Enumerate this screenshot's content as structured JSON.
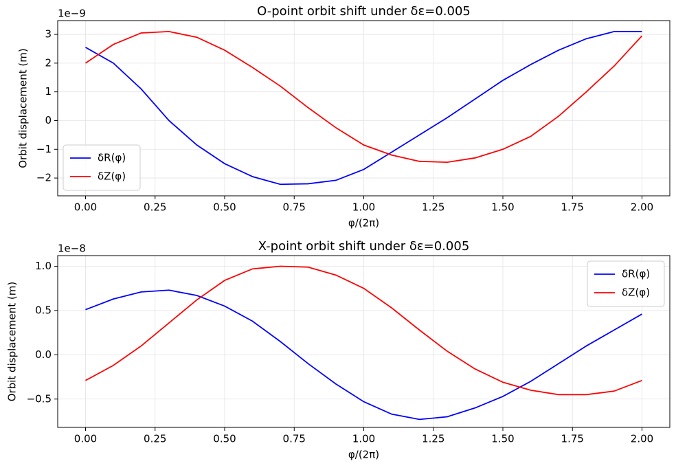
{
  "chart_data": [
    {
      "type": "line",
      "title": "O-point orbit shift under δε=0.005",
      "x_label": "φ/(2π)",
      "y_label": "Orbit displacement (m)",
      "offset_text": "1e−9",
      "x": [
        0,
        0.1,
        0.2,
        0.3,
        0.4,
        0.5,
        0.6,
        0.7,
        0.8,
        0.9,
        1.0,
        1.1,
        1.2,
        1.3,
        1.4,
        1.5,
        1.6,
        1.7,
        1.8,
        1.9,
        2.0
      ],
      "series": [
        {
          "name": "δR(φ)",
          "color": "#0000ff",
          "values": [
            2.55,
            2.0,
            1.1,
            0.0,
            -0.85,
            -1.5,
            -1.95,
            -2.22,
            -2.2,
            -2.08,
            -1.7,
            -1.1,
            -0.5,
            0.1,
            0.75,
            1.4,
            1.95,
            2.45,
            2.85,
            3.1,
            3.1
          ]
        },
        {
          "name": "δZ(φ)",
          "color": "#ff0000",
          "values": [
            2.0,
            2.65,
            3.05,
            3.1,
            2.9,
            2.45,
            1.85,
            1.2,
            0.45,
            -0.25,
            -0.85,
            -1.2,
            -1.42,
            -1.45,
            -1.3,
            -1.0,
            -0.55,
            0.15,
            1.0,
            1.9,
            2.95
          ]
        }
      ],
      "xlim": [
        -0.1,
        2.1
      ],
      "ylim": [
        -2.62,
        3.48
      ],
      "xticks": [
        {
          "value": 0,
          "label": "0.00"
        },
        {
          "value": 0.25,
          "label": "0.25"
        },
        {
          "value": 0.5,
          "label": "0.50"
        },
        {
          "value": 0.75,
          "label": "0.75"
        },
        {
          "value": 1,
          "label": "1.00"
        },
        {
          "value": 1.25,
          "label": "1.25"
        },
        {
          "value": 1.5,
          "label": "1.50"
        },
        {
          "value": 1.75,
          "label": "1.75"
        },
        {
          "value": 2,
          "label": "2.00"
        }
      ],
      "yticks": [
        {
          "value": -2,
          "label": "−2"
        },
        {
          "value": -1,
          "label": "−1"
        },
        0,
        1,
        2,
        3
      ],
      "grid": true,
      "legend": "lower left"
    },
    {
      "type": "line",
      "title": "X-point orbit shift under δε=0.005",
      "x_label": "φ/(2π)",
      "y_label": "Orbit displacement (m)",
      "offset_text": "1e−8",
      "x": [
        0,
        0.1,
        0.2,
        0.3,
        0.4,
        0.5,
        0.6,
        0.7,
        0.8,
        0.9,
        1.0,
        1.1,
        1.2,
        1.3,
        1.4,
        1.5,
        1.6,
        1.7,
        1.8,
        1.9,
        2.0
      ],
      "series": [
        {
          "name": "δR(φ)",
          "color": "#0000ff",
          "values": [
            0.51,
            0.63,
            0.71,
            0.73,
            0.67,
            0.55,
            0.38,
            0.15,
            -0.1,
            -0.33,
            -0.53,
            -0.67,
            -0.73,
            -0.7,
            -0.6,
            -0.47,
            -0.3,
            -0.1,
            0.1,
            0.28,
            0.46
          ]
        },
        {
          "name": "δZ(φ)",
          "color": "#ff0000",
          "values": [
            -0.29,
            -0.12,
            0.1,
            0.36,
            0.62,
            0.84,
            0.97,
            1.0,
            0.99,
            0.9,
            0.75,
            0.53,
            0.28,
            0.04,
            -0.16,
            -0.31,
            -0.4,
            -0.45,
            -0.45,
            -0.41,
            -0.29
          ]
        }
      ],
      "xlim": [
        -0.1,
        2.1
      ],
      "ylim": [
        -0.82,
        1.12
      ],
      "xticks": [
        {
          "value": 0,
          "label": "0.00"
        },
        {
          "value": 0.25,
          "label": "0.25"
        },
        {
          "value": 0.5,
          "label": "0.50"
        },
        {
          "value": 0.75,
          "label": "0.75"
        },
        {
          "value": 1,
          "label": "1.00"
        },
        {
          "value": 1.25,
          "label": "1.25"
        },
        {
          "value": 1.5,
          "label": "1.50"
        },
        {
          "value": 1.75,
          "label": "1.75"
        },
        {
          "value": 2,
          "label": "2.00"
        }
      ],
      "yticks": [
        {
          "value": -0.5,
          "label": "−0.5"
        },
        {
          "value": 0,
          "label": "0.0"
        },
        {
          "value": 0.5,
          "label": "0.5"
        },
        {
          "value": 1,
          "label": "1.0"
        }
      ],
      "grid": true,
      "legend": "upper right"
    }
  ]
}
